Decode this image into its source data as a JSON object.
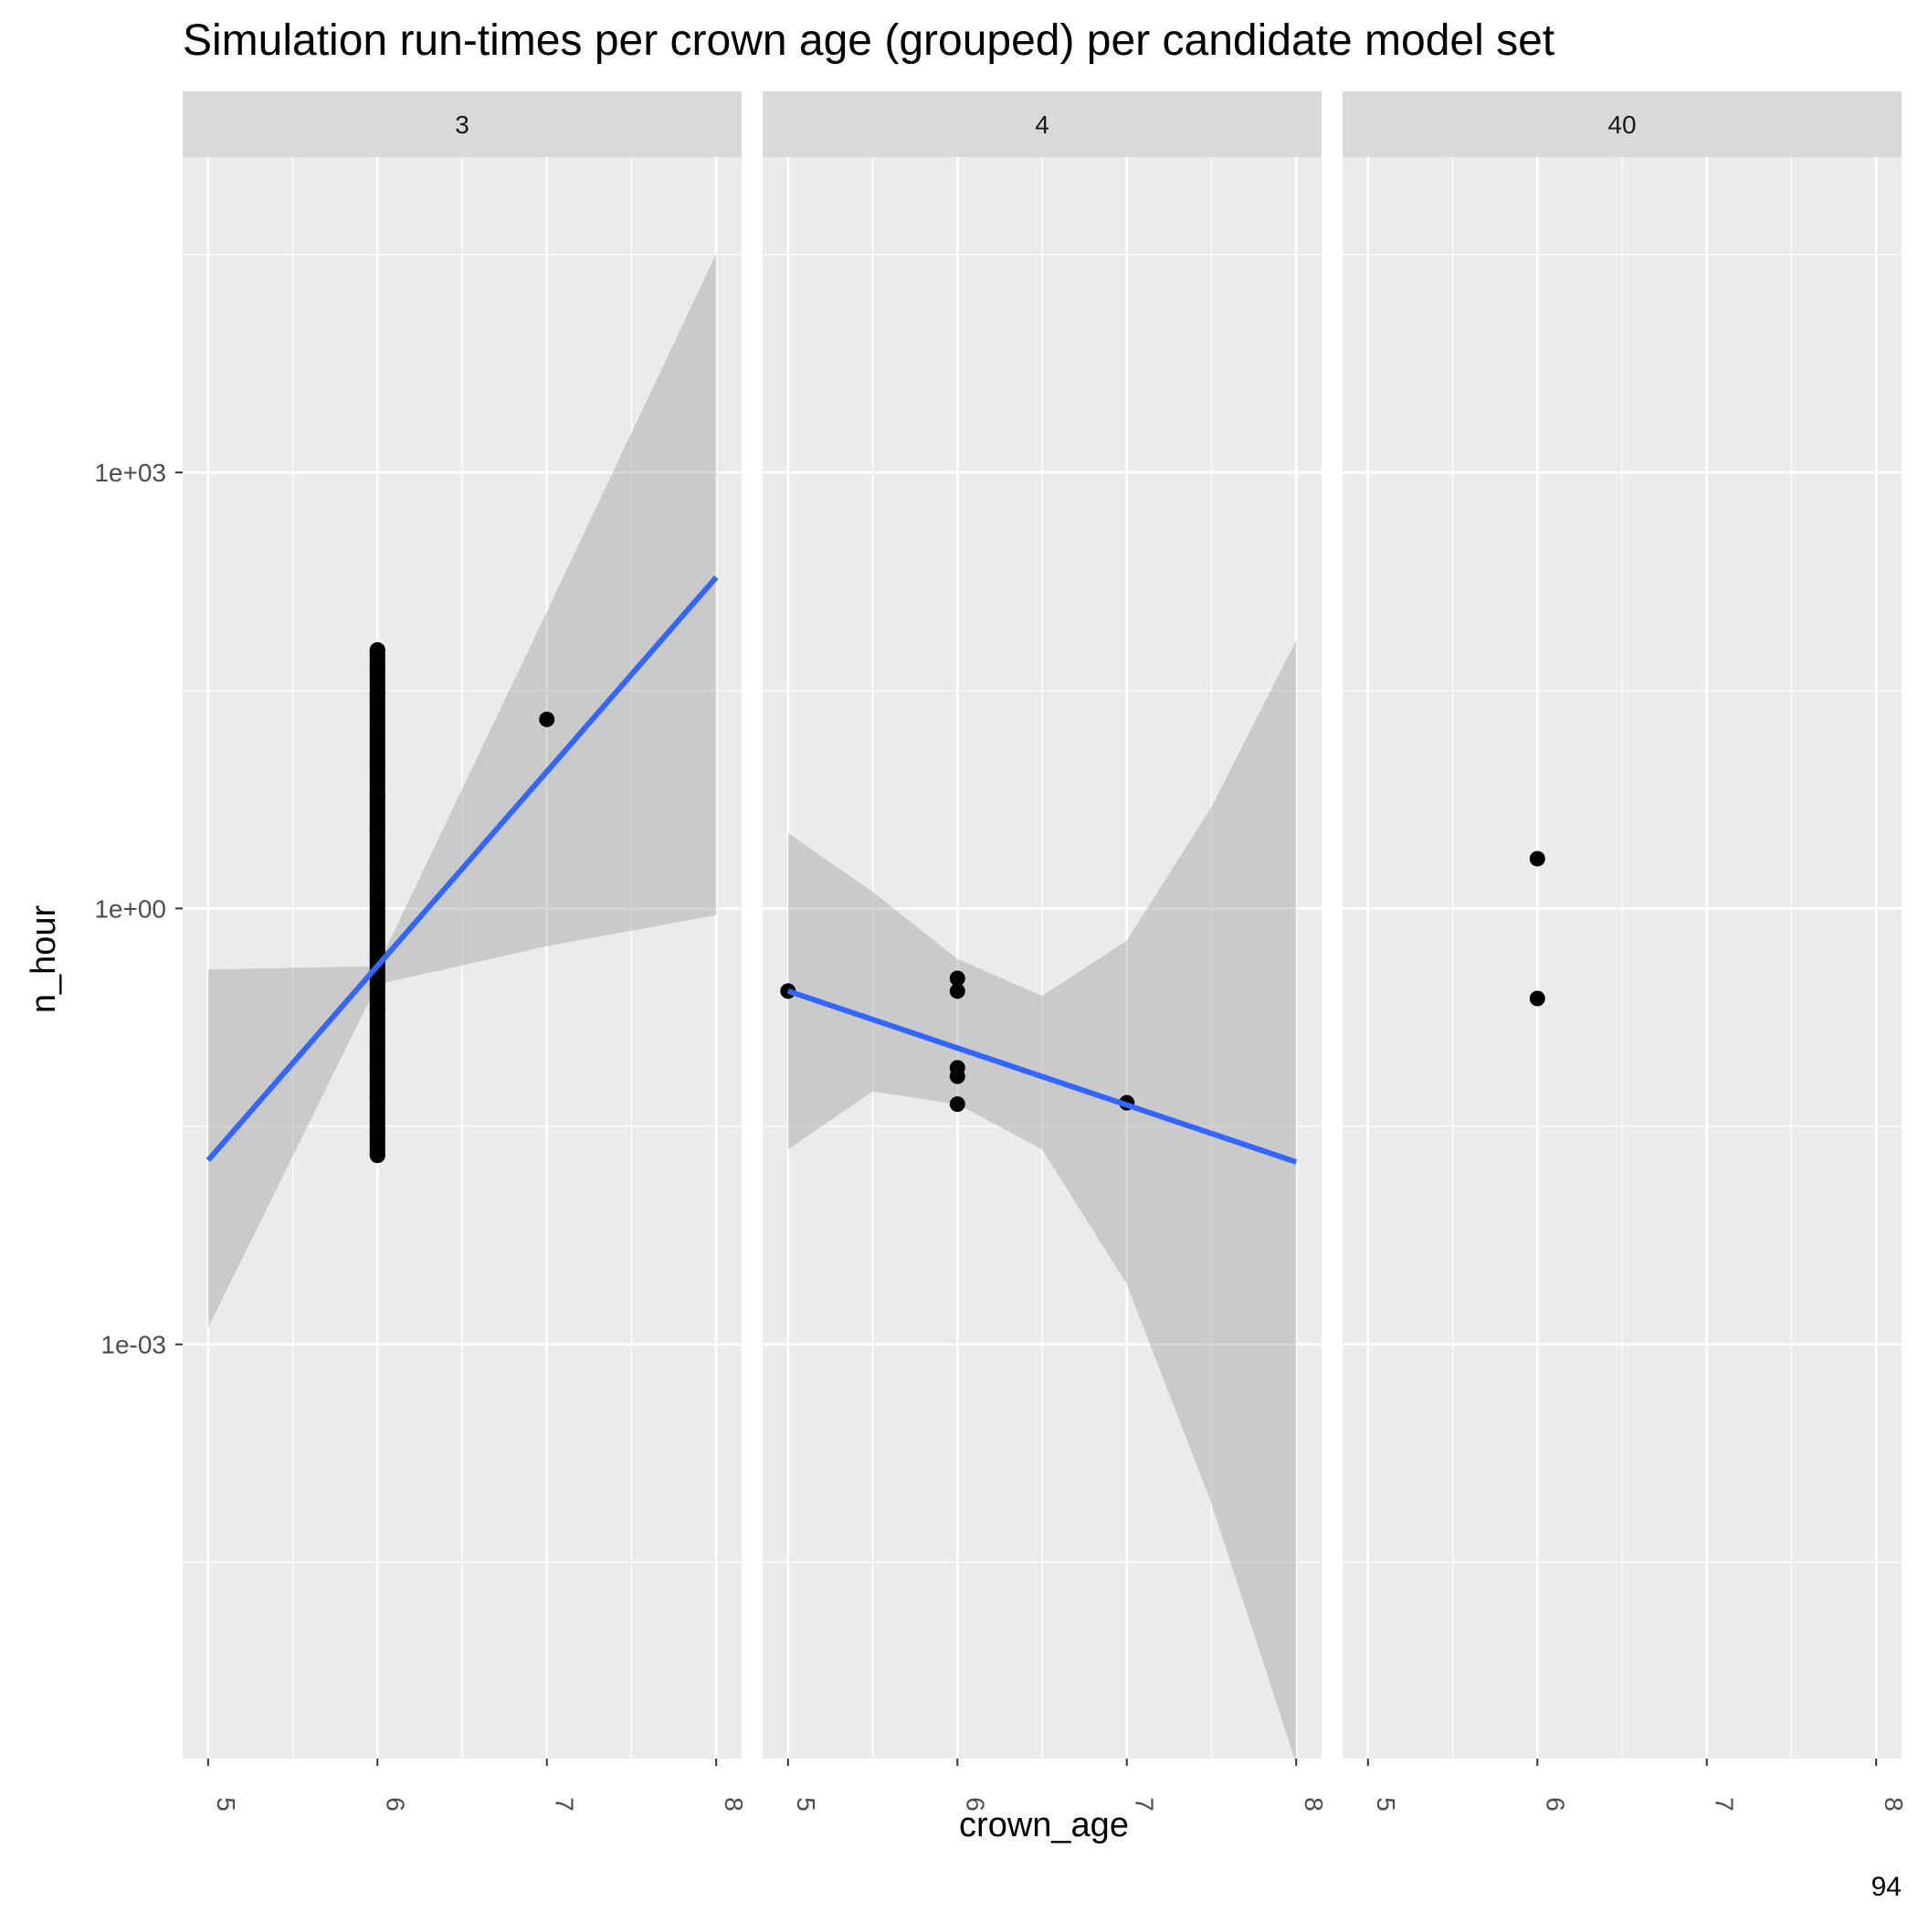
{
  "chart_data": {
    "type": "scatter",
    "title": "Simulation run-times per crown age (grouped) per candidate model set",
    "xlabel": "crown_age",
    "ylabel": "n_hour",
    "caption": "94",
    "y_scale": "log10",
    "xlim": [
      4.85,
      8.15
    ],
    "ylim_log10": [
      -5.85,
      5.17
    ],
    "x_ticks": [
      5,
      6,
      7,
      8
    ],
    "y_ticks": [
      {
        "value": 1000,
        "label": "1e+03"
      },
      {
        "value": 1,
        "label": "1e+00"
      },
      {
        "value": 0.001,
        "label": "1e-03"
      }
    ],
    "grid": true,
    "colors": {
      "panel_bg": "#ebebeb",
      "strip_bg": "#d9d9d9",
      "grid": "#ffffff",
      "points": "#000000",
      "fit_line": "#3366ff",
      "ribbon": "#999999"
    },
    "panels": [
      {
        "label": "3",
        "points": [
          {
            "x": 6,
            "y": 0.02
          },
          {
            "x": 6,
            "y": 0.03
          },
          {
            "x": 6,
            "y": 0.05
          },
          {
            "x": 6,
            "y": 0.08
          },
          {
            "x": 6,
            "y": 0.12
          },
          {
            "x": 6,
            "y": 0.2
          },
          {
            "x": 6,
            "y": 0.3
          },
          {
            "x": 6,
            "y": 0.5
          },
          {
            "x": 6,
            "y": 0.8
          },
          {
            "x": 6,
            "y": 1.3
          },
          {
            "x": 6,
            "y": 2
          },
          {
            "x": 6,
            "y": 3.5
          },
          {
            "x": 6,
            "y": 6
          },
          {
            "x": 6,
            "y": 10
          },
          {
            "x": 6,
            "y": 18
          },
          {
            "x": 6,
            "y": 30
          },
          {
            "x": 6,
            "y": 45
          },
          {
            "x": 6,
            "y": 60
          },
          {
            "x": 7,
            "y": 20
          }
        ],
        "fit": {
          "x": [
            5,
            8
          ],
          "y": [
            0.0185,
            190
          ]
        },
        "band": {
          "x": [
            5,
            6,
            7,
            8
          ],
          "lower": [
            0.0013,
            0.3,
            0.55,
            0.9
          ],
          "upper": [
            0.38,
            0.4,
            110,
            32000
          ]
        }
      },
      {
        "label": "4",
        "points": [
          {
            "x": 5,
            "y": 0.27
          },
          {
            "x": 6,
            "y": 0.33
          },
          {
            "x": 6,
            "y": 0.27
          },
          {
            "x": 6,
            "y": 0.08
          },
          {
            "x": 6,
            "y": 0.07
          },
          {
            "x": 6,
            "y": 0.045
          },
          {
            "x": 7,
            "y": 0.046
          }
        ],
        "fit": {
          "x": [
            5,
            8
          ],
          "y": [
            0.27,
            0.018
          ]
        },
        "band": {
          "x": [
            5,
            5.5,
            6,
            6.5,
            7,
            7.5,
            8
          ],
          "lower": [
            0.022,
            0.055,
            0.045,
            0.022,
            0.0026,
            8e-05,
            1.3e-06
          ],
          "upper": [
            3.3,
            1.3,
            0.45,
            0.25,
            0.6,
            5,
            70
          ]
        }
      },
      {
        "label": "40",
        "points": [
          {
            "x": 6,
            "y": 2.2
          },
          {
            "x": 6,
            "y": 0.24
          }
        ]
      }
    ]
  }
}
